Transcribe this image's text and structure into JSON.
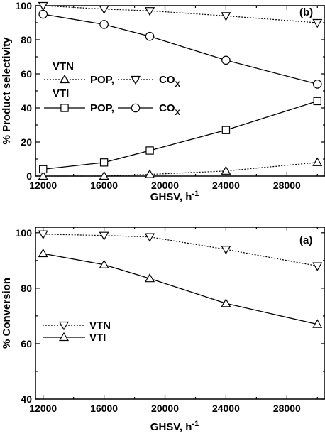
{
  "chart_data": [
    {
      "type": "line",
      "panel_label": "(b)",
      "xlabel": "GHSV, h",
      "xlabel_sup": "-1",
      "ylabel": "% Product selectivity",
      "xlim": [
        11500,
        30500
      ],
      "ylim": [
        0,
        100
      ],
      "xticks": [
        12000,
        16000,
        20000,
        24000,
        28000
      ],
      "yticks": [
        0,
        20,
        40,
        60,
        80,
        100
      ],
      "legend": {
        "placement": "left",
        "groups": [
          {
            "title": "VTN",
            "style": "dotted",
            "entries": [
              {
                "label": "POP,",
                "marker": "triangle-up"
              },
              {
                "label": "CO",
                "sub": "X",
                "marker": "triangle-down"
              }
            ]
          },
          {
            "title": "VTI",
            "style": "solid",
            "entries": [
              {
                "label": "POP,",
                "marker": "square"
              },
              {
                "label": "CO",
                "sub": "X",
                "marker": "circle"
              }
            ]
          }
        ]
      },
      "series": [
        {
          "group": "VTN",
          "label": "POP",
          "marker": "triangle-up",
          "style": "dotted",
          "x": [
            12000,
            16000,
            19000,
            24000,
            30000
          ],
          "y": [
            0,
            0,
            1,
            3,
            8
          ]
        },
        {
          "group": "VTN",
          "label": "COX",
          "marker": "triangle-down",
          "style": "dotted",
          "x": [
            12000,
            16000,
            19000,
            24000,
            30000
          ],
          "y": [
            100,
            98,
            97,
            94,
            90
          ]
        },
        {
          "group": "VTI",
          "label": "POP",
          "marker": "square",
          "style": "solid",
          "x": [
            12000,
            16000,
            19000,
            24000,
            30000
          ],
          "y": [
            4,
            8,
            15,
            27,
            44
          ]
        },
        {
          "group": "VTI",
          "label": "COX",
          "marker": "circle",
          "style": "solid",
          "x": [
            12000,
            16000,
            19000,
            24000,
            30000
          ],
          "y": [
            95,
            89,
            82,
            68,
            54
          ]
        }
      ]
    },
    {
      "type": "line",
      "panel_label": "(a)",
      "xlabel": "GHSV, h",
      "xlabel_sup": "-1",
      "ylabel": "% Conversion",
      "xlim": [
        11500,
        30500
      ],
      "ylim": [
        40,
        102
      ],
      "xticks": [
        12000,
        16000,
        20000,
        24000,
        28000
      ],
      "yticks": [
        40,
        60,
        80,
        100
      ],
      "legend": {
        "placement": "lower-left",
        "entries": [
          {
            "label": "VTN",
            "marker": "triangle-down",
            "style": "dotted"
          },
          {
            "label": "VTI",
            "marker": "triangle-up",
            "style": "solid"
          }
        ]
      },
      "series": [
        {
          "name": "VTN",
          "marker": "triangle-down",
          "style": "dotted",
          "x": [
            12000,
            16000,
            19000,
            24000,
            30000
          ],
          "y": [
            99.5,
            99,
            98.5,
            94,
            88
          ]
        },
        {
          "name": "VTI",
          "marker": "triangle-up",
          "style": "solid",
          "x": [
            12000,
            16000,
            19000,
            24000,
            30000
          ],
          "y": [
            92.5,
            88.5,
            83.5,
            74.5,
            67
          ]
        }
      ]
    }
  ]
}
